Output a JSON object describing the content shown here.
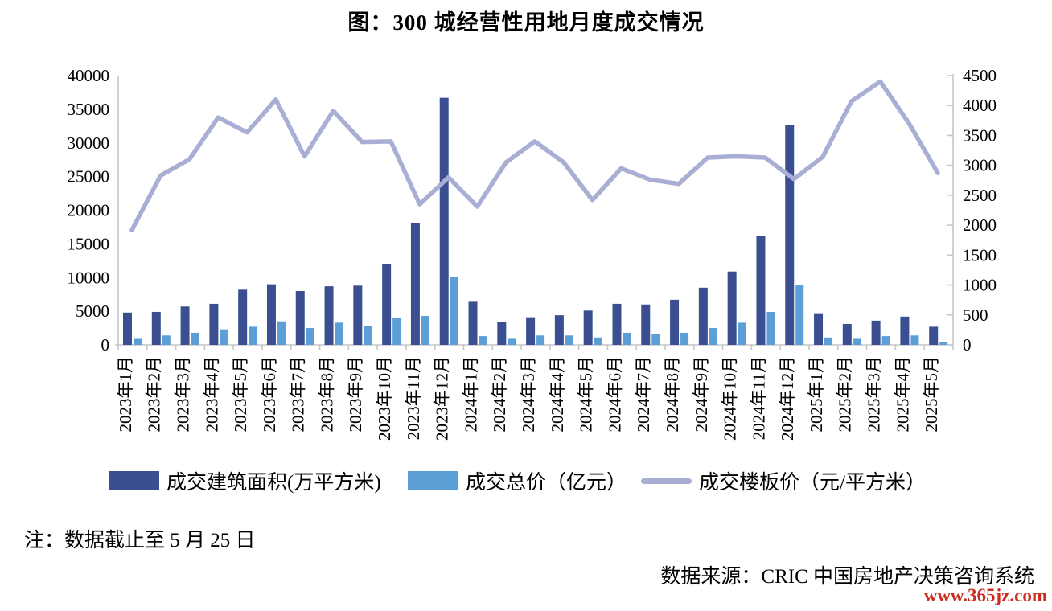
{
  "title": "图：300 城经营性用地月度成交情况",
  "note": "注：数据截止至 5 月 25 日",
  "source": "数据来源：CRIC 中国房地产决策咨询系统",
  "watermark": "www.365jz.com",
  "colors": {
    "bar_area": "#3b4e91",
    "bar_price": "#5c9fd6",
    "line_price": "#a9afd4",
    "axis": "#c6c6c6",
    "text": "#000000",
    "watermark": "#cc2b1f"
  },
  "legend": [
    {
      "label": "成交建筑面积(万平方米)",
      "type": "rect",
      "colorKey": "bar_area"
    },
    {
      "label": "成交总价（亿元）",
      "type": "rect",
      "colorKey": "bar_price"
    },
    {
      "label": "成交楼板价（元/平方米）",
      "type": "line",
      "colorKey": "line_price"
    }
  ],
  "chart_data": {
    "type": "bar",
    "subtype": "bar+line combo, dual axis",
    "title": "图：300 城经营性用地月度成交情况",
    "xlabel": "",
    "ylabel_left": "成交建筑面积(万平方米) / 成交总价(亿元)",
    "ylabel_right": "成交楼板价(元/平方米)",
    "grid": false,
    "legend_position": "bottom",
    "left_axis": {
      "min": 0,
      "max": 40000,
      "step": 5000,
      "ticks": [
        0,
        5000,
        10000,
        15000,
        20000,
        25000,
        30000,
        35000,
        40000
      ]
    },
    "right_axis": {
      "min": 0,
      "max": 4500,
      "step": 500,
      "ticks": [
        0,
        500,
        1000,
        1500,
        2000,
        2500,
        3000,
        3500,
        4000,
        4500
      ]
    },
    "categories": [
      "2023年1月",
      "2023年2月",
      "2023年3月",
      "2023年4月",
      "2023年5月",
      "2023年6月",
      "2023年7月",
      "2023年8月",
      "2023年9月",
      "2023年10月",
      "2023年11月",
      "2023年12月",
      "2024年1月",
      "2024年2月",
      "2024年3月",
      "2024年4月",
      "2024年5月",
      "2024年6月",
      "2024年7月",
      "2024年8月",
      "2024年9月",
      "2024年10月",
      "2024年11月",
      "2024年12月",
      "2025年1月",
      "2025年2月",
      "2025年3月",
      "2025年4月",
      "2025年5月"
    ],
    "series": [
      {
        "name": "成交建筑面积(万平方米)",
        "type": "bar",
        "axis": "left",
        "values": [
          4800,
          4900,
          5700,
          6100,
          8200,
          9000,
          8000,
          8700,
          8800,
          12000,
          18100,
          36700,
          6400,
          3400,
          4100,
          4400,
          5100,
          6100,
          6000,
          6700,
          8500,
          10900,
          16200,
          32600,
          4700,
          3100,
          3600,
          4200,
          2700
        ]
      },
      {
        "name": "成交总价（亿元）",
        "type": "bar",
        "axis": "left",
        "values": [
          900,
          1400,
          1800,
          2300,
          2700,
          3500,
          2500,
          3300,
          2800,
          4000,
          4300,
          10100,
          1300,
          900,
          1400,
          1400,
          1100,
          1800,
          1600,
          1800,
          2500,
          3300,
          4900,
          8900,
          1100,
          900,
          1300,
          1400,
          400
        ]
      },
      {
        "name": "成交楼板价（元/平方米）",
        "type": "line",
        "axis": "right",
        "values": [
          1920,
          2830,
          3100,
          3800,
          3550,
          4100,
          3150,
          3910,
          3390,
          3400,
          2350,
          2800,
          2310,
          3050,
          3400,
          3050,
          2420,
          2950,
          2760,
          2690,
          3130,
          3150,
          3130,
          2770,
          3140,
          4070,
          4400,
          3700,
          2870
        ]
      }
    ]
  }
}
